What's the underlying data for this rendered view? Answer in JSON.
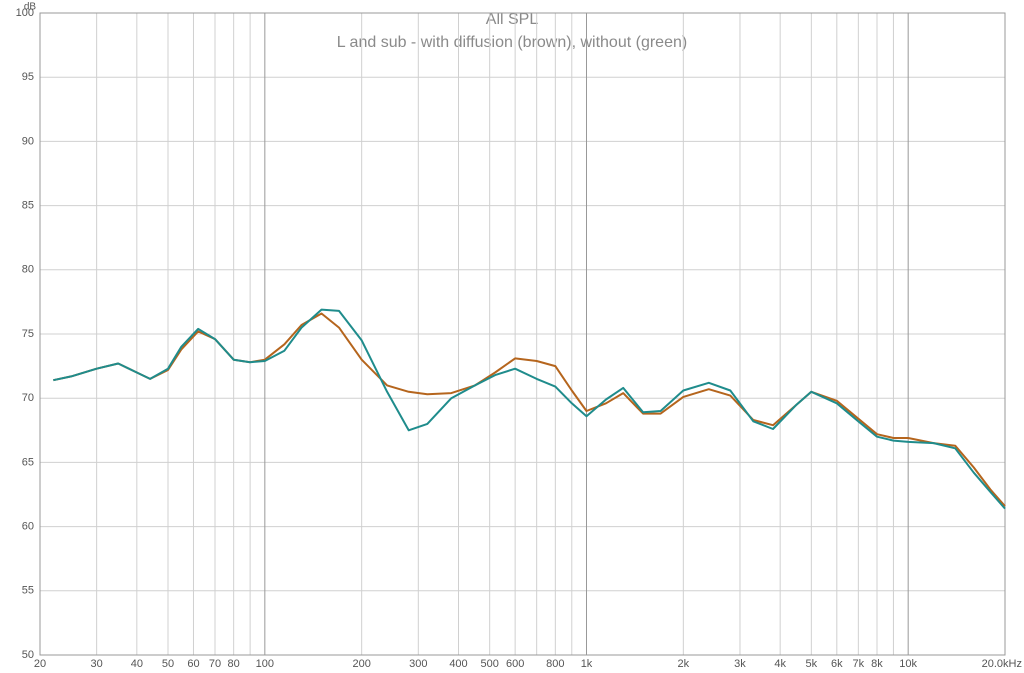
{
  "chart_data": {
    "type": "line",
    "title": "All SPL",
    "subtitle": "L and sub - with diffusion (brown), without (green)",
    "y_label": "dB",
    "log_x": true,
    "grid": true,
    "xlim": [
      20,
      20000
    ],
    "ylim": [
      50,
      100
    ],
    "yticks": [
      50,
      55,
      60,
      65,
      70,
      75,
      80,
      85,
      90,
      95,
      100
    ],
    "xticks": [
      20,
      30,
      40,
      50,
      60,
      70,
      80,
      100,
      200,
      300,
      400,
      500,
      600,
      800,
      {
        "value": 1000,
        "label": "1k"
      },
      {
        "value": 2000,
        "label": "2k"
      },
      {
        "value": 3000,
        "label": "3k"
      },
      {
        "value": 4000,
        "label": "4k"
      },
      {
        "value": 5000,
        "label": "5k"
      },
      {
        "value": 6000,
        "label": "6k"
      },
      {
        "value": 7000,
        "label": "7k"
      },
      {
        "value": 8000,
        "label": "8k"
      },
      {
        "value": 10000,
        "label": "10k"
      },
      {
        "value": 20000,
        "label": "20.0kHz"
      }
    ],
    "xminorticks": [
      90,
      700,
      900,
      9000
    ],
    "x": [
      22,
      25,
      30,
      35,
      40,
      44,
      50,
      55,
      62,
      70,
      80,
      90,
      100,
      115,
      130,
      150,
      170,
      200,
      240,
      280,
      320,
      380,
      450,
      520,
      600,
      700,
      800,
      900,
      1000,
      1150,
      1300,
      1500,
      1700,
      2000,
      2400,
      2800,
      3300,
      3800,
      4500,
      5000,
      6000,
      7000,
      8000,
      9000,
      10000,
      12000,
      14000,
      16000,
      18000,
      20000
    ],
    "series": [
      {
        "name": "with diffusion",
        "color": "#b5651d",
        "values": [
          71.4,
          71.7,
          72.3,
          72.7,
          72.0,
          71.5,
          72.2,
          73.8,
          75.2,
          74.6,
          73.0,
          72.8,
          73.0,
          74.2,
          75.7,
          76.6,
          75.5,
          73.0,
          71.0,
          70.5,
          70.3,
          70.4,
          71.0,
          72.0,
          73.1,
          72.9,
          72.5,
          70.6,
          69.0,
          69.6,
          70.4,
          68.8,
          68.8,
          70.1,
          70.7,
          70.2,
          68.3,
          67.9,
          69.5,
          70.5,
          69.8,
          68.4,
          67.2,
          66.9,
          66.9,
          66.5,
          66.3,
          64.6,
          62.9,
          61.6
        ]
      },
      {
        "name": "without",
        "color": "#1f8c8c",
        "values": [
          71.4,
          71.7,
          72.3,
          72.7,
          72.0,
          71.5,
          72.3,
          74.0,
          75.4,
          74.6,
          73.0,
          72.8,
          72.9,
          73.7,
          75.5,
          76.9,
          76.8,
          74.5,
          70.5,
          67.5,
          68.0,
          70.0,
          71.0,
          71.8,
          72.3,
          71.5,
          70.9,
          69.6,
          68.6,
          69.9,
          70.8,
          68.9,
          69.0,
          70.6,
          71.2,
          70.6,
          68.2,
          67.6,
          69.5,
          70.5,
          69.6,
          68.2,
          67.0,
          66.7,
          66.6,
          66.5,
          66.1,
          64.2,
          62.7,
          61.4
        ]
      }
    ]
  }
}
